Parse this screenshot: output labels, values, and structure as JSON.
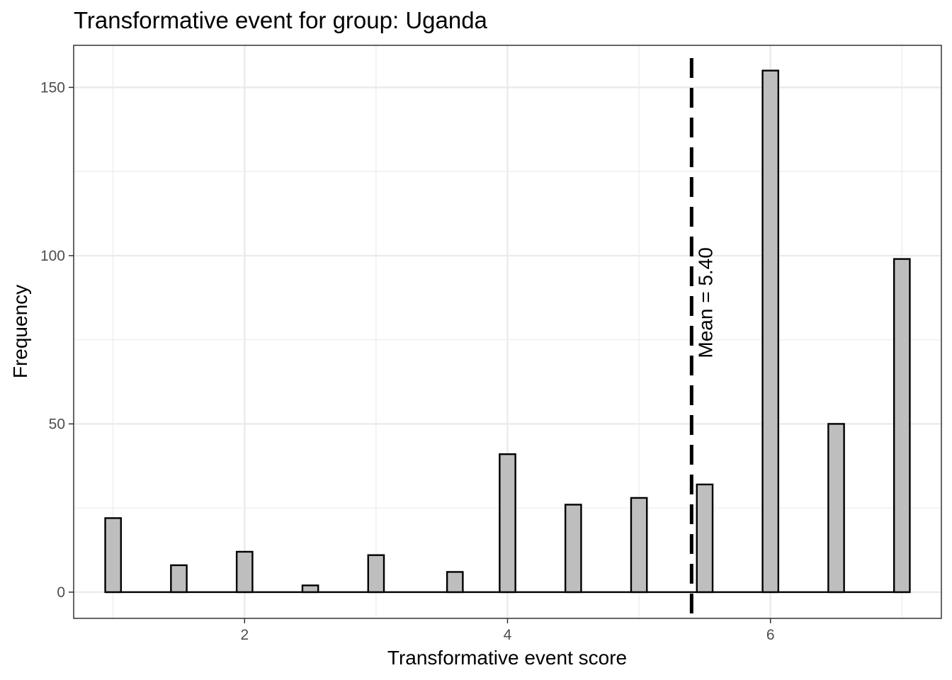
{
  "chart_data": {
    "type": "bar",
    "title": "Transformative event for group: Uganda",
    "xlabel": "Transformative event score",
    "ylabel": "Frequency",
    "x_ticks": [
      2,
      4,
      6
    ],
    "y_ticks": [
      0,
      50,
      100,
      150
    ],
    "xlim": [
      0.7,
      7.3
    ],
    "ylim": [
      -7.8,
      162.5
    ],
    "bars": [
      {
        "x": 1.0,
        "value": 22
      },
      {
        "x": 1.5,
        "value": 8
      },
      {
        "x": 2.0,
        "value": 12
      },
      {
        "x": 2.5,
        "value": 2
      },
      {
        "x": 3.0,
        "value": 11
      },
      {
        "x": 3.6,
        "value": 6
      },
      {
        "x": 4.0,
        "value": 41
      },
      {
        "x": 4.5,
        "value": 26
      },
      {
        "x": 5.0,
        "value": 28
      },
      {
        "x": 5.5,
        "value": 32
      },
      {
        "x": 6.0,
        "value": 155
      },
      {
        "x": 6.5,
        "value": 50
      },
      {
        "x": 7.0,
        "value": 99
      }
    ],
    "mean": 5.4,
    "mean_label": "Mean = 5.40",
    "grid": true,
    "colors": {
      "bar_fill": "#bebebe",
      "bar_stroke": "#000000",
      "mean_line": "#000000",
      "grid_major": "#ebebeb",
      "panel_border": "#333333"
    }
  }
}
